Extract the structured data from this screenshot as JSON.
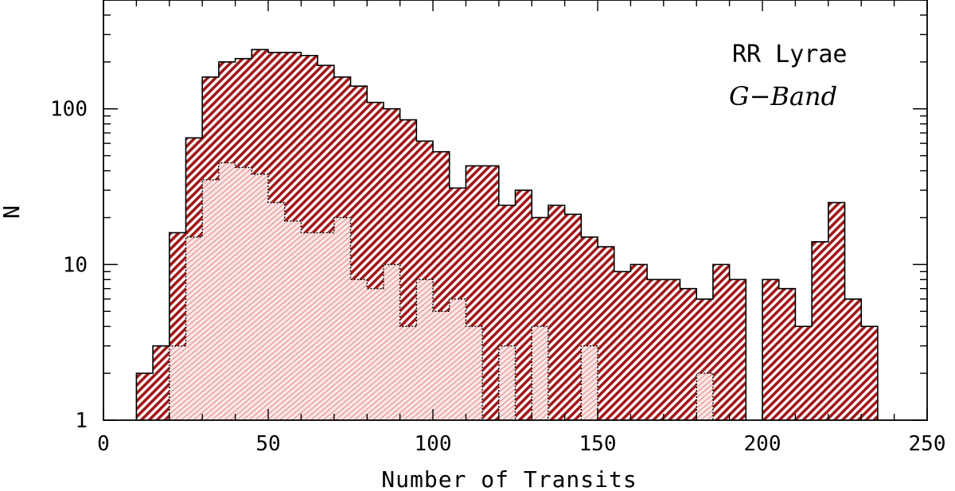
{
  "chart_data": {
    "type": "bar",
    "style": "step-histogram",
    "y_scale": "log",
    "bin_width": 5,
    "xlabel": "Number of Transits",
    "ylabel": "N",
    "xlim": [
      0,
      250
    ],
    "ylim": [
      1,
      500
    ],
    "x_ticks": [
      0,
      50,
      100,
      150,
      200,
      250
    ],
    "y_ticks": [
      1,
      10,
      100
    ],
    "annotations": {
      "line1": "RR Lyrae",
      "line2": "G−Band"
    },
    "colors": {
      "main": "#a01818",
      "sub": "#e06a6a",
      "sub_fill": "#fbe6e6"
    },
    "series": [
      {
        "values": [
          [
            10,
            2
          ],
          [
            15,
            3
          ],
          [
            20,
            16
          ],
          [
            25,
            65
          ],
          [
            30,
            160
          ],
          [
            35,
            200
          ],
          [
            40,
            210
          ],
          [
            45,
            240
          ],
          [
            50,
            230
          ],
          [
            55,
            230
          ],
          [
            60,
            220
          ],
          [
            65,
            190
          ],
          [
            70,
            160
          ],
          [
            75,
            140
          ],
          [
            80,
            110
          ],
          [
            85,
            100
          ],
          [
            90,
            85
          ],
          [
            95,
            62
          ],
          [
            100,
            53
          ],
          [
            105,
            31
          ],
          [
            110,
            43
          ],
          [
            115,
            43
          ],
          [
            120,
            24
          ],
          [
            125,
            30
          ],
          [
            130,
            20
          ],
          [
            135,
            24
          ],
          [
            140,
            21
          ],
          [
            145,
            15
          ],
          [
            150,
            13
          ],
          [
            155,
            9
          ],
          [
            160,
            10
          ],
          [
            165,
            8
          ],
          [
            170,
            8
          ],
          [
            175,
            7
          ],
          [
            180,
            6
          ],
          [
            185,
            10
          ],
          [
            190,
            8
          ],
          [
            195,
            null
          ],
          [
            200,
            8
          ],
          [
            205,
            7
          ],
          [
            210,
            4
          ],
          [
            215,
            14
          ],
          [
            220,
            25
          ],
          [
            225,
            6
          ],
          [
            230,
            4
          ]
        ]
      },
      {
        "values": [
          [
            20,
            3
          ],
          [
            25,
            15
          ],
          [
            30,
            35
          ],
          [
            35,
            45
          ],
          [
            40,
            42
          ],
          [
            45,
            38
          ],
          [
            50,
            25
          ],
          [
            55,
            19
          ],
          [
            60,
            16
          ],
          [
            65,
            16
          ],
          [
            70,
            20
          ],
          [
            75,
            8
          ],
          [
            80,
            7
          ],
          [
            85,
            10
          ],
          [
            90,
            4
          ],
          [
            95,
            8
          ],
          [
            100,
            5
          ],
          [
            105,
            6
          ],
          [
            110,
            4
          ],
          [
            115,
            null
          ],
          [
            120,
            3
          ],
          [
            125,
            null
          ],
          [
            130,
            4
          ],
          [
            135,
            null
          ],
          [
            140,
            null
          ],
          [
            145,
            3
          ],
          [
            150,
            null
          ],
          [
            155,
            null
          ],
          [
            160,
            null
          ],
          [
            165,
            null
          ],
          [
            170,
            null
          ],
          [
            175,
            null
          ],
          [
            180,
            2
          ]
        ]
      }
    ]
  }
}
